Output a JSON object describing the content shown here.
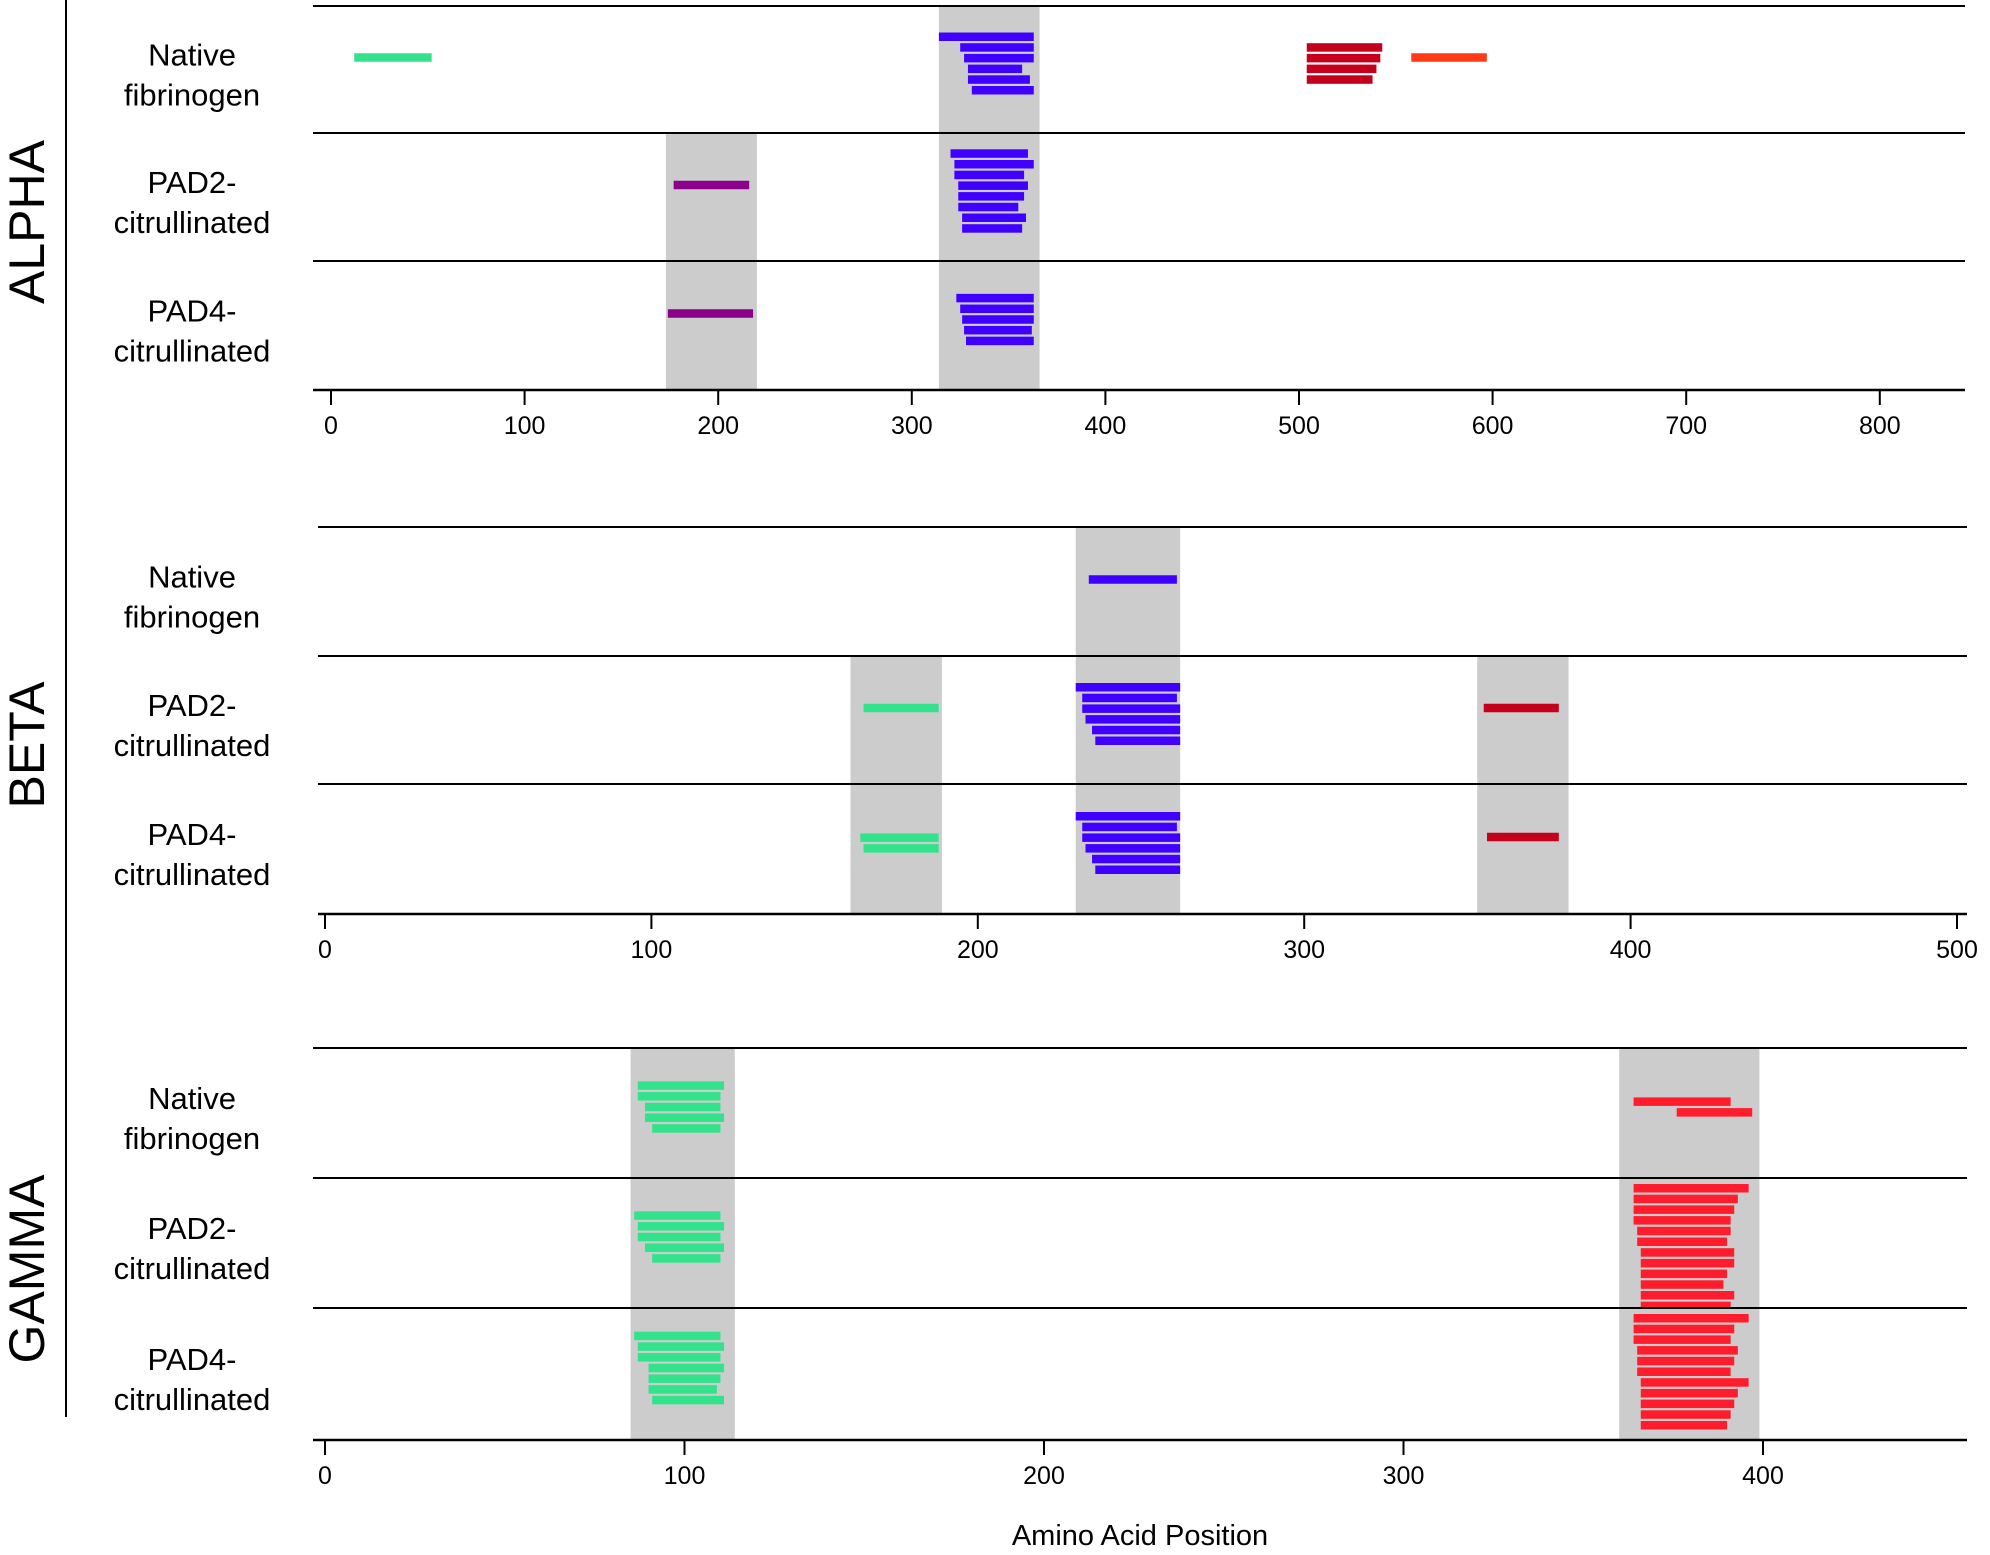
{
  "chart_data": {
    "type": "range-bar",
    "title": "",
    "xlabel": "Amino Acid Position",
    "ylabel": "",
    "grid": false,
    "legend": "none",
    "colors": {
      "green": "#33e38c",
      "blue": "#3f00ff",
      "purple": "#8b008b",
      "dark_red": "#c4001c",
      "orange_red": "#ff3a14",
      "red": "#ff1c2c",
      "shade": "#cccccc",
      "line": "#000000"
    },
    "panels": [
      {
        "name": "ALPHA",
        "xlim": [
          0,
          840
        ],
        "ticks": [
          0,
          100,
          200,
          300,
          400,
          500,
          600,
          700,
          800
        ],
        "tick_labels": [
          "0",
          "100",
          "200",
          "300",
          "400",
          "500",
          "600",
          "700",
          "800"
        ],
        "rows": [
          {
            "label_line1": "Native",
            "label_line2": "fibrinogen",
            "shaded": [
              [
                314,
                366
              ]
            ],
            "peptides": [
              {
                "start": 12,
                "end": 52,
                "color": "green"
              },
              {
                "start": 314,
                "end": 363,
                "color": "blue"
              },
              {
                "start": 325,
                "end": 363,
                "color": "blue"
              },
              {
                "start": 327,
                "end": 363,
                "color": "blue"
              },
              {
                "start": 329,
                "end": 357,
                "color": "blue"
              },
              {
                "start": 329,
                "end": 361,
                "color": "blue"
              },
              {
                "start": 331,
                "end": 363,
                "color": "blue"
              },
              {
                "start": 504,
                "end": 543,
                "color": "dark_red"
              },
              {
                "start": 504,
                "end": 542,
                "color": "dark_red"
              },
              {
                "start": 504,
                "end": 540,
                "color": "dark_red"
              },
              {
                "start": 504,
                "end": 538,
                "color": "dark_red"
              },
              {
                "start": 558,
                "end": 597,
                "color": "orange_red"
              }
            ]
          },
          {
            "label_line1": "PAD2-",
            "label_line2": "citrullinated",
            "shaded": [
              [
                173,
                220
              ],
              [
                314,
                366
              ]
            ],
            "peptides": [
              {
                "start": 177,
                "end": 216,
                "color": "purple"
              },
              {
                "start": 320,
                "end": 360,
                "color": "blue"
              },
              {
                "start": 322,
                "end": 363,
                "color": "blue"
              },
              {
                "start": 322,
                "end": 358,
                "color": "blue"
              },
              {
                "start": 324,
                "end": 360,
                "color": "blue"
              },
              {
                "start": 324,
                "end": 358,
                "color": "blue"
              },
              {
                "start": 324,
                "end": 355,
                "color": "blue"
              },
              {
                "start": 326,
                "end": 359,
                "color": "blue"
              },
              {
                "start": 326,
                "end": 357,
                "color": "blue"
              }
            ]
          },
          {
            "label_line1": "PAD4-",
            "label_line2": "citrullinated",
            "shaded": [
              [
                173,
                220
              ],
              [
                314,
                366
              ]
            ],
            "peptides": [
              {
                "start": 174,
                "end": 218,
                "color": "purple"
              },
              {
                "start": 323,
                "end": 363,
                "color": "blue"
              },
              {
                "start": 325,
                "end": 363,
                "color": "blue"
              },
              {
                "start": 326,
                "end": 363,
                "color": "blue"
              },
              {
                "start": 327,
                "end": 362,
                "color": "blue"
              },
              {
                "start": 328,
                "end": 363,
                "color": "blue"
              }
            ]
          }
        ]
      },
      {
        "name": "BETA",
        "xlim": [
          0,
          500
        ],
        "ticks": [
          0,
          100,
          200,
          300,
          400,
          500
        ],
        "tick_labels": [
          "0",
          "100",
          "200",
          "300",
          "400",
          "500"
        ],
        "rows": [
          {
            "label_line1": "Native",
            "label_line2": "fibrinogen",
            "shaded": [
              [
                230,
                262
              ]
            ],
            "peptides": [
              {
                "start": 234,
                "end": 261,
                "color": "blue"
              }
            ]
          },
          {
            "label_line1": "PAD2-",
            "label_line2": "citrullinated",
            "shaded": [
              [
                161,
                189
              ],
              [
                230,
                262
              ],
              [
                353,
                381
              ]
            ],
            "peptides": [
              {
                "start": 165,
                "end": 188,
                "color": "green"
              },
              {
                "start": 230,
                "end": 262,
                "color": "blue"
              },
              {
                "start": 232,
                "end": 261,
                "color": "blue"
              },
              {
                "start": 232,
                "end": 262,
                "color": "blue"
              },
              {
                "start": 233,
                "end": 262,
                "color": "blue"
              },
              {
                "start": 235,
                "end": 262,
                "color": "blue"
              },
              {
                "start": 236,
                "end": 262,
                "color": "blue"
              },
              {
                "start": 355,
                "end": 378,
                "color": "dark_red"
              }
            ]
          },
          {
            "label_line1": "PAD4-",
            "label_line2": "citrullinated",
            "shaded": [
              [
                161,
                189
              ],
              [
                230,
                262
              ],
              [
                353,
                381
              ]
            ],
            "peptides": [
              {
                "start": 164,
                "end": 188,
                "color": "green"
              },
              {
                "start": 165,
                "end": 188,
                "color": "green"
              },
              {
                "start": 230,
                "end": 262,
                "color": "blue"
              },
              {
                "start": 232,
                "end": 261,
                "color": "blue"
              },
              {
                "start": 232,
                "end": 262,
                "color": "blue"
              },
              {
                "start": 233,
                "end": 262,
                "color": "blue"
              },
              {
                "start": 235,
                "end": 262,
                "color": "blue"
              },
              {
                "start": 236,
                "end": 262,
                "color": "blue"
              },
              {
                "start": 356,
                "end": 378,
                "color": "dark_red"
              }
            ]
          }
        ]
      },
      {
        "name": "GAMMA",
        "xlim": [
          0,
          455
        ],
        "ticks": [
          0,
          100,
          200,
          300,
          400
        ],
        "tick_labels": [
          "0",
          "100",
          "200",
          "300",
          "400"
        ],
        "rows": [
          {
            "label_line1": "Native",
            "label_line2": "fibrinogen",
            "shaded": [
              [
                85,
                114
              ],
              [
                360,
                399
              ]
            ],
            "peptides": [
              {
                "start": 87,
                "end": 111,
                "color": "green"
              },
              {
                "start": 87,
                "end": 110,
                "color": "green"
              },
              {
                "start": 89,
                "end": 110,
                "color": "green"
              },
              {
                "start": 89,
                "end": 111,
                "color": "green"
              },
              {
                "start": 91,
                "end": 110,
                "color": "green"
              },
              {
                "start": 364,
                "end": 391,
                "color": "red"
              },
              {
                "start": 376,
                "end": 397,
                "color": "red"
              }
            ]
          },
          {
            "label_line1": "PAD2-",
            "label_line2": "citrullinated",
            "shaded": [
              [
                85,
                114
              ],
              [
                360,
                399
              ]
            ],
            "peptides": [
              {
                "start": 86,
                "end": 110,
                "color": "green"
              },
              {
                "start": 87,
                "end": 111,
                "color": "green"
              },
              {
                "start": 87,
                "end": 110,
                "color": "green"
              },
              {
                "start": 89,
                "end": 111,
                "color": "green"
              },
              {
                "start": 91,
                "end": 110,
                "color": "green"
              },
              {
                "start": 364,
                "end": 396,
                "color": "red"
              },
              {
                "start": 364,
                "end": 393,
                "color": "red"
              },
              {
                "start": 364,
                "end": 392,
                "color": "red"
              },
              {
                "start": 364,
                "end": 391,
                "color": "red"
              },
              {
                "start": 365,
                "end": 391,
                "color": "red"
              },
              {
                "start": 365,
                "end": 390,
                "color": "red"
              },
              {
                "start": 366,
                "end": 392,
                "color": "red"
              },
              {
                "start": 366,
                "end": 392,
                "color": "red"
              },
              {
                "start": 366,
                "end": 390,
                "color": "red"
              },
              {
                "start": 366,
                "end": 389,
                "color": "red"
              },
              {
                "start": 366,
                "end": 392,
                "color": "red"
              },
              {
                "start": 366,
                "end": 391,
                "color": "red"
              }
            ]
          },
          {
            "label_line1": "PAD4-",
            "label_line2": "citrullinated",
            "shaded": [
              [
                85,
                114
              ],
              [
                360,
                399
              ]
            ],
            "peptides": [
              {
                "start": 86,
                "end": 110,
                "color": "green"
              },
              {
                "start": 87,
                "end": 111,
                "color": "green"
              },
              {
                "start": 87,
                "end": 110,
                "color": "green"
              },
              {
                "start": 90,
                "end": 111,
                "color": "green"
              },
              {
                "start": 90,
                "end": 110,
                "color": "green"
              },
              {
                "start": 90,
                "end": 109,
                "color": "green"
              },
              {
                "start": 91,
                "end": 111,
                "color": "green"
              },
              {
                "start": 364,
                "end": 396,
                "color": "red"
              },
              {
                "start": 364,
                "end": 392,
                "color": "red"
              },
              {
                "start": 364,
                "end": 391,
                "color": "red"
              },
              {
                "start": 365,
                "end": 393,
                "color": "red"
              },
              {
                "start": 365,
                "end": 392,
                "color": "red"
              },
              {
                "start": 365,
                "end": 391,
                "color": "red"
              },
              {
                "start": 366,
                "end": 396,
                "color": "red"
              },
              {
                "start": 366,
                "end": 393,
                "color": "red"
              },
              {
                "start": 366,
                "end": 392,
                "color": "red"
              },
              {
                "start": 366,
                "end": 391,
                "color": "red"
              },
              {
                "start": 366,
                "end": 390,
                "color": "red"
              }
            ]
          }
        ]
      }
    ]
  }
}
